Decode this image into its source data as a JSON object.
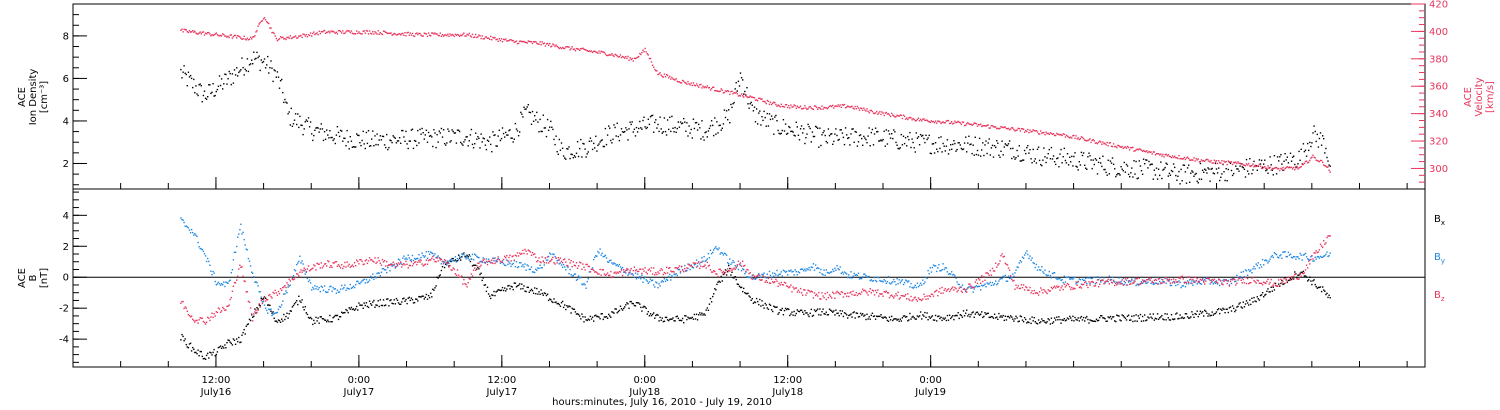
{
  "chart_data": [
    {
      "type": "scatter",
      "panel": "top",
      "ylabel_lines": [
        "ACE",
        "Ion Density",
        "[cm⁻³]"
      ],
      "y2label_lines": [
        "ACE",
        "Velocity",
        "[km/s]"
      ],
      "ylim": [
        0.8,
        9.5
      ],
      "y_ticks": [
        2,
        4,
        6,
        8
      ],
      "y2lim": [
        285,
        420
      ],
      "y2_ticks": [
        300,
        320,
        340,
        360,
        380,
        400,
        420
      ],
      "series": [
        {
          "axis": "left",
          "color": "#000000",
          "points": [
            [
              0,
              6.3
            ],
            [
              2,
              5.2
            ],
            [
              4,
              6.0
            ],
            [
              6,
              7.0
            ],
            [
              7,
              6.8
            ],
            [
              8,
              6.2
            ],
            [
              8.6,
              5.3
            ],
            [
              9,
              4.3
            ],
            [
              11,
              3.6
            ],
            [
              14,
              3.2
            ],
            [
              16,
              3.1
            ],
            [
              20,
              3.2
            ],
            [
              24,
              3.3
            ],
            [
              26,
              3.0
            ],
            [
              28,
              3.5
            ],
            [
              29,
              4.4
            ],
            [
              31,
              3.6
            ],
            [
              32,
              2.6
            ],
            [
              34,
              2.8
            ],
            [
              36,
              3.4
            ],
            [
              40,
              3.9
            ],
            [
              44,
              3.6
            ],
            [
              46,
              4.2
            ],
            [
              47,
              6.2
            ],
            [
              48,
              4.4
            ],
            [
              50,
              3.8
            ],
            [
              54,
              3.2
            ],
            [
              58,
              3.3
            ],
            [
              62,
              3.0
            ],
            [
              66,
              2.9
            ],
            [
              70,
              2.7
            ],
            [
              72,
              2.4
            ],
            [
              74,
              2.3
            ],
            [
              78,
              1.9
            ],
            [
              82,
              1.7
            ],
            [
              84,
              1.5
            ],
            [
              88,
              1.7
            ],
            [
              92,
              2.0
            ],
            [
              94,
              2.3
            ],
            [
              95,
              3.4
            ],
            [
              96,
              3.0
            ],
            [
              96.5,
              2.0
            ]
          ]
        },
        {
          "axis": "right",
          "color": "#e8365d",
          "points": [
            [
              0,
              401
            ],
            [
              4,
              397
            ],
            [
              6,
              395
            ],
            [
              7,
              412
            ],
            [
              8,
              395
            ],
            [
              10,
              397
            ],
            [
              12,
              400
            ],
            [
              16,
              400
            ],
            [
              20,
              398
            ],
            [
              24,
              398
            ],
            [
              28,
              393
            ],
            [
              30,
              392
            ],
            [
              32,
              389
            ],
            [
              36,
              384
            ],
            [
              38,
              380
            ],
            [
              39,
              387
            ],
            [
              40,
              370
            ],
            [
              42,
              364
            ],
            [
              46,
              356
            ],
            [
              48,
              352
            ],
            [
              50,
              347
            ],
            [
              52,
              345
            ],
            [
              54,
              345
            ],
            [
              56,
              346
            ],
            [
              58,
              342
            ],
            [
              62,
              336
            ],
            [
              66,
              333
            ],
            [
              70,
              329
            ],
            [
              74,
              325
            ],
            [
              78,
              318
            ],
            [
              82,
              311
            ],
            [
              86,
              306
            ],
            [
              90,
              303
            ],
            [
              92,
              300
            ],
            [
              94,
              301
            ],
            [
              95,
              309
            ],
            [
              96,
              304
            ],
            [
              96.5,
              298
            ]
          ]
        }
      ]
    },
    {
      "type": "scatter",
      "panel": "bottom",
      "ylabel_lines": [
        "ACE",
        "B",
        "[nT]"
      ],
      "ylim": [
        -5.8,
        5.7
      ],
      "y_ticks": [
        -4,
        -2,
        0,
        2,
        4
      ],
      "legend": [
        "B",
        "B",
        "B"
      ],
      "legend_sub": [
        "x",
        "y",
        "z"
      ],
      "series": [
        {
          "name": "Bx",
          "color": "#000000",
          "points": [
            [
              0,
              -3.8
            ],
            [
              1,
              -4.6
            ],
            [
              2,
              -5.1
            ],
            [
              3,
              -4.8
            ],
            [
              4,
              -4.2
            ],
            [
              5,
              -4.0
            ],
            [
              6,
              -2.5
            ],
            [
              7,
              -1.2
            ],
            [
              8,
              -2.8
            ],
            [
              9,
              -2.4
            ],
            [
              10,
              -1.3
            ],
            [
              11,
              -2.8
            ],
            [
              13,
              -2.6
            ],
            [
              15,
              -1.8
            ],
            [
              17,
              -1.6
            ],
            [
              19,
              -1.5
            ],
            [
              21,
              -1.2
            ],
            [
              22,
              0.8
            ],
            [
              24,
              1.5
            ],
            [
              25,
              0.4
            ],
            [
              26,
              -1.2
            ],
            [
              28,
              -0.5
            ],
            [
              30,
              -0.9
            ],
            [
              32,
              -1.7
            ],
            [
              34,
              -2.7
            ],
            [
              36,
              -2.4
            ],
            [
              38,
              -1.6
            ],
            [
              40,
              -2.6
            ],
            [
              42,
              -2.7
            ],
            [
              44,
              -2.4
            ],
            [
              45,
              -0.5
            ],
            [
              46,
              0.6
            ],
            [
              47,
              -0.6
            ],
            [
              48,
              -1.4
            ],
            [
              50,
              -2.1
            ],
            [
              52,
              -2.3
            ],
            [
              54,
              -2.2
            ],
            [
              56,
              -2.4
            ],
            [
              58,
              -2.5
            ],
            [
              60,
              -2.7
            ],
            [
              62,
              -2.4
            ],
            [
              64,
              -2.6
            ],
            [
              66,
              -2.3
            ],
            [
              68,
              -2.5
            ],
            [
              70,
              -2.6
            ],
            [
              72,
              -2.8
            ],
            [
              74,
              -2.7
            ],
            [
              76,
              -2.7
            ],
            [
              78,
              -2.6
            ],
            [
              80,
              -2.6
            ],
            [
              82,
              -2.5
            ],
            [
              84,
              -2.5
            ],
            [
              86,
              -2.3
            ],
            [
              88,
              -2.1
            ],
            [
              90,
              -1.5
            ],
            [
              92,
              -0.5
            ],
            [
              94,
              0.4
            ],
            [
              96,
              -0.9
            ],
            [
              96.5,
              -1.4
            ]
          ]
        },
        {
          "name": "By",
          "color": "#1e88e5",
          "points": [
            [
              0,
              3.7
            ],
            [
              1,
              3.0
            ],
            [
              2,
              1.5
            ],
            [
              3,
              -0.3
            ],
            [
              4,
              -0.5
            ],
            [
              5,
              3.4
            ],
            [
              6,
              0.4
            ],
            [
              7,
              -1.9
            ],
            [
              8,
              -2.4
            ],
            [
              9,
              -0.6
            ],
            [
              10,
              1.2
            ],
            [
              11,
              -0.6
            ],
            [
              13,
              -0.8
            ],
            [
              15,
              -0.4
            ],
            [
              17,
              0.4
            ],
            [
              19,
              1.3
            ],
            [
              21,
              1.5
            ],
            [
              22,
              1.0
            ],
            [
              24,
              1.4
            ],
            [
              26,
              1.1
            ],
            [
              28,
              0.9
            ],
            [
              30,
              0.5
            ],
            [
              31,
              1.5
            ],
            [
              33,
              0.2
            ],
            [
              34,
              -0.5
            ],
            [
              35,
              1.8
            ],
            [
              36,
              1.0
            ],
            [
              38,
              0.2
            ],
            [
              40,
              -0.5
            ],
            [
              42,
              0.5
            ],
            [
              44,
              1.2
            ],
            [
              45,
              2.0
            ],
            [
              46,
              1.1
            ],
            [
              47,
              0.6
            ],
            [
              48,
              0.0
            ],
            [
              50,
              0.3
            ],
            [
              52,
              0.4
            ],
            [
              53,
              0.8
            ],
            [
              54,
              0.3
            ],
            [
              55,
              0.7
            ],
            [
              56,
              0.2
            ],
            [
              58,
              0.0
            ],
            [
              60,
              -0.2
            ],
            [
              62,
              -0.6
            ],
            [
              63,
              0.6
            ],
            [
              64,
              0.7
            ],
            [
              66,
              -0.8
            ],
            [
              68,
              -0.4
            ],
            [
              70,
              0.2
            ],
            [
              71,
              1.7
            ],
            [
              72,
              0.6
            ],
            [
              74,
              -0.1
            ],
            [
              76,
              -0.2
            ],
            [
              78,
              -0.1
            ],
            [
              80,
              -0.3
            ],
            [
              82,
              -0.2
            ],
            [
              84,
              -0.4
            ],
            [
              86,
              -0.2
            ],
            [
              88,
              -0.3
            ],
            [
              90,
              0.6
            ],
            [
              92,
              1.5
            ],
            [
              94,
              1.4
            ],
            [
              95,
              1.3
            ],
            [
              96.5,
              1.5
            ]
          ]
        },
        {
          "name": "Bz",
          "color": "#e8365d",
          "points": [
            [
              0,
              -1.5
            ],
            [
              1,
              -2.6
            ],
            [
              2,
              -2.8
            ],
            [
              3,
              -2.2
            ],
            [
              4,
              -1.9
            ],
            [
              5,
              1.0
            ],
            [
              6,
              -2.6
            ],
            [
              7,
              -1.3
            ],
            [
              8,
              -1.0
            ],
            [
              10,
              0.4
            ],
            [
              12,
              0.9
            ],
            [
              14,
              0.8
            ],
            [
              16,
              1.2
            ],
            [
              18,
              0.8
            ],
            [
              20,
              0.9
            ],
            [
              21,
              1.2
            ],
            [
              22,
              1.1
            ],
            [
              23,
              0.5
            ],
            [
              24,
              -0.5
            ],
            [
              25,
              0.9
            ],
            [
              26,
              1.1
            ],
            [
              28,
              1.3
            ],
            [
              29,
              1.8
            ],
            [
              30,
              1.2
            ],
            [
              32,
              1.1
            ],
            [
              34,
              0.7
            ],
            [
              36,
              0.2
            ],
            [
              38,
              0.5
            ],
            [
              40,
              0.4
            ],
            [
              42,
              0.6
            ],
            [
              44,
              0.9
            ],
            [
              45,
              0.3
            ],
            [
              46,
              0.5
            ],
            [
              47,
              1.0
            ],
            [
              48,
              0.1
            ],
            [
              50,
              -0.3
            ],
            [
              52,
              -0.9
            ],
            [
              54,
              -1.2
            ],
            [
              56,
              -1.0
            ],
            [
              58,
              -0.9
            ],
            [
              60,
              -1.1
            ],
            [
              62,
              -1.4
            ],
            [
              64,
              -0.8
            ],
            [
              66,
              -0.7
            ],
            [
              68,
              0.3
            ],
            [
              69,
              1.5
            ],
            [
              70,
              -0.5
            ],
            [
              72,
              -0.9
            ],
            [
              74,
              -0.6
            ],
            [
              76,
              -0.4
            ],
            [
              78,
              -0.3
            ],
            [
              80,
              -0.2
            ],
            [
              82,
              -0.2
            ],
            [
              84,
              -0.1
            ],
            [
              86,
              -0.2
            ],
            [
              88,
              -0.3
            ],
            [
              90,
              -0.1
            ],
            [
              92,
              -0.4
            ],
            [
              94,
              0.2
            ],
            [
              96,
              2.3
            ],
            [
              96.5,
              2.8
            ]
          ]
        }
      ]
    }
  ],
  "x_axis": {
    "xlim": [
      -9,
      104.5
    ],
    "ticks": [
      {
        "x": 3,
        "time": "12:00",
        "date": "July16"
      },
      {
        "x": 15,
        "time": "0:00",
        "date": "July17"
      },
      {
        "x": 27,
        "time": "12:00",
        "date": "July17"
      },
      {
        "x": 39,
        "time": "0:00",
        "date": "July18"
      },
      {
        "x": 51,
        "time": "12:00",
        "date": "July18"
      },
      {
        "x": 63,
        "time": "0:00",
        "date": "July19"
      }
    ],
    "label": "hours:minutes, July 16, 2010 - July 19, 2010"
  }
}
